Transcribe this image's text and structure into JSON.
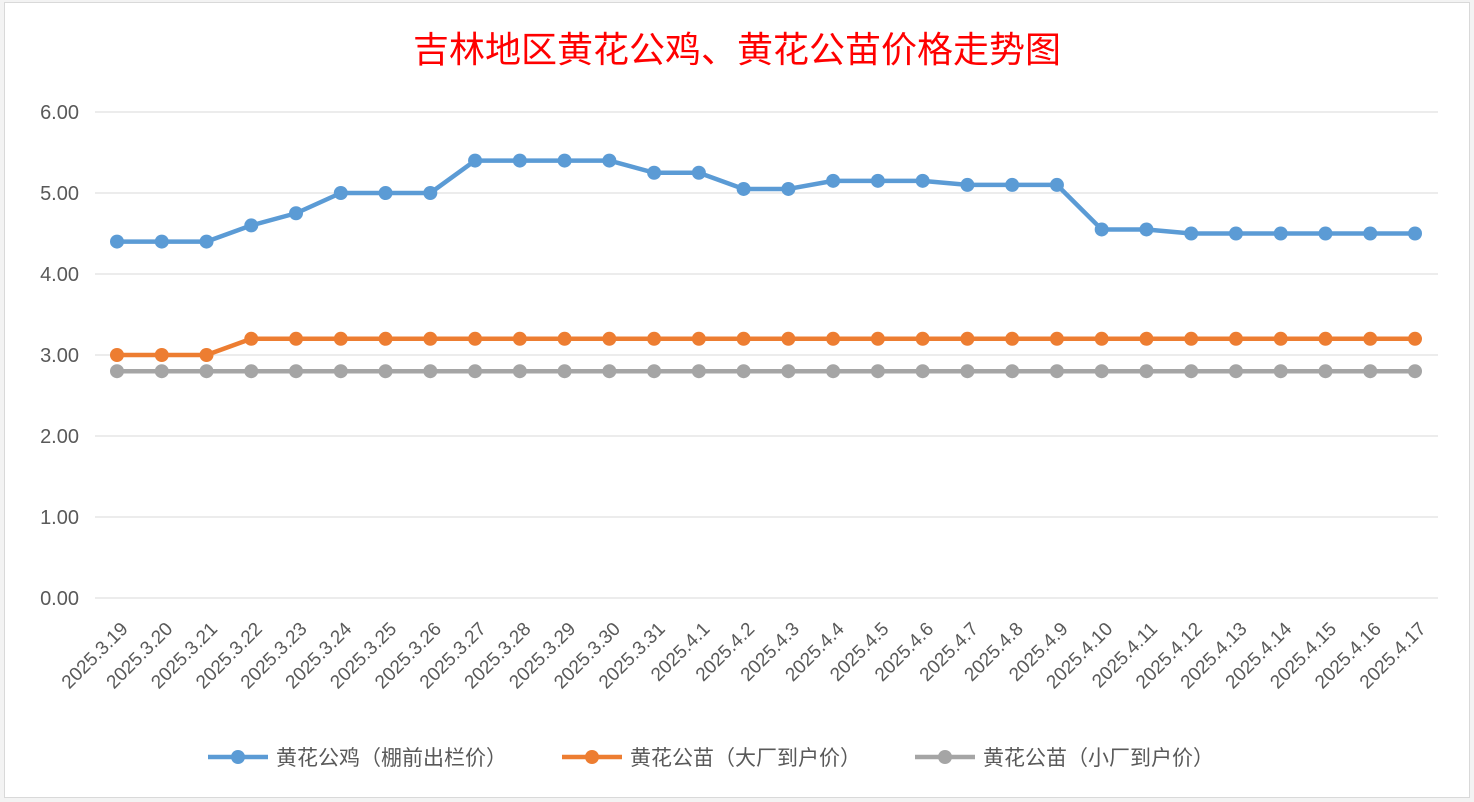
{
  "chart_data": {
    "type": "line",
    "title": "吉林地区黄花公鸡、黄花公苗价格走势图",
    "categories": [
      "2025.3.19",
      "2025.3.20",
      "2025.3.21",
      "2025.3.22",
      "2025.3.23",
      "2025.3.24",
      "2025.3.25",
      "2025.3.26",
      "2025.3.27",
      "2025.3.28",
      "2025.3.29",
      "2025.3.30",
      "2025.3.31",
      "2025.4.1",
      "2025.4.2",
      "2025.4.3",
      "2025.4.4",
      "2025.4.5",
      "2025.4.6",
      "2025.4.7",
      "2025.4.8",
      "2025.4.9",
      "2025.4.10",
      "2025.4.11",
      "2025.4.12",
      "2025.4.13",
      "2025.4.14",
      "2025.4.15",
      "2025.4.16",
      "2025.4.17"
    ],
    "ylim": [
      0,
      6
    ],
    "yticks": [
      "0.00",
      "1.00",
      "2.00",
      "3.00",
      "4.00",
      "5.00",
      "6.00"
    ],
    "grid": true,
    "legend_position": "bottom",
    "series": [
      {
        "name": "黄花公鸡（棚前出栏价）",
        "color": "#5b9bd5",
        "values": [
          4.4,
          4.4,
          4.4,
          4.6,
          4.75,
          5.0,
          5.0,
          5.0,
          5.4,
          5.4,
          5.4,
          5.4,
          5.25,
          5.25,
          5.05,
          5.05,
          5.15,
          5.15,
          5.15,
          5.1,
          5.1,
          5.1,
          4.55,
          4.55,
          4.5,
          4.5,
          4.5,
          4.5,
          4.5,
          4.5
        ]
      },
      {
        "name": "黄花公苗（大厂到户价）",
        "color": "#ed7d31",
        "values": [
          3.0,
          3.0,
          3.0,
          3.2,
          3.2,
          3.2,
          3.2,
          3.2,
          3.2,
          3.2,
          3.2,
          3.2,
          3.2,
          3.2,
          3.2,
          3.2,
          3.2,
          3.2,
          3.2,
          3.2,
          3.2,
          3.2,
          3.2,
          3.2,
          3.2,
          3.2,
          3.2,
          3.2,
          3.2,
          3.2
        ]
      },
      {
        "name": "黄花公苗（小厂到户价）",
        "color": "#a5a5a5",
        "values": [
          2.8,
          2.8,
          2.8,
          2.8,
          2.8,
          2.8,
          2.8,
          2.8,
          2.8,
          2.8,
          2.8,
          2.8,
          2.8,
          2.8,
          2.8,
          2.8,
          2.8,
          2.8,
          2.8,
          2.8,
          2.8,
          2.8,
          2.8,
          2.8,
          2.8,
          2.8,
          2.8,
          2.8,
          2.8,
          2.8
        ]
      }
    ]
  }
}
